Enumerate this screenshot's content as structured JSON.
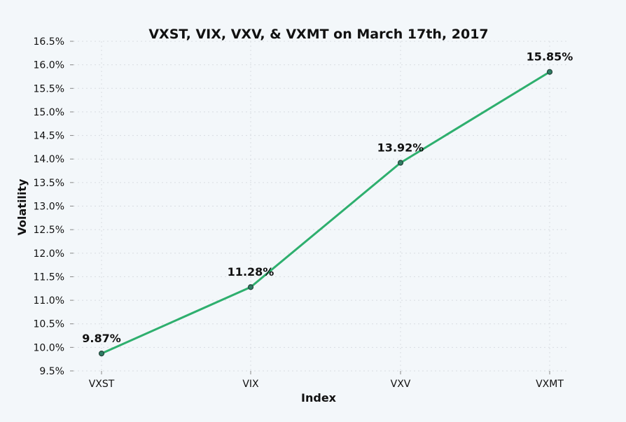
{
  "colors": {
    "line": "#2eaf6e",
    "marker_fill": "#2f7d63",
    "marker_stroke": "#24433a",
    "background": "#f3f7fa"
  },
  "chart_data": {
    "type": "line",
    "title": "VXST, VIX, VXV, & VXMT on March 17th, 2017",
    "xlabel": "Index",
    "ylabel": "Volatility",
    "categories": [
      "VXST",
      "VIX",
      "VXV",
      "VXMT"
    ],
    "series": [
      {
        "values": [
          9.87,
          11.28,
          13.92,
          15.85
        ]
      }
    ],
    "data_labels": [
      "9.87%",
      "11.28%",
      "13.92%",
      "15.85%"
    ],
    "ylim": [
      9.5,
      16.5
    ],
    "yticks": [
      9.5,
      10.0,
      10.5,
      11.0,
      11.5,
      12.0,
      12.5,
      13.0,
      13.5,
      14.0,
      14.5,
      15.0,
      15.5,
      16.0,
      16.5
    ],
    "ytick_labels": [
      "9.5%",
      "10.0%",
      "10.5%",
      "11.0%",
      "11.5%",
      "12.0%",
      "12.5%",
      "13.0%",
      "13.5%",
      "14.0%",
      "14.5%",
      "15.0%",
      "15.5%",
      "16.0%",
      "16.5%"
    ],
    "grid": true,
    "legend": false
  }
}
